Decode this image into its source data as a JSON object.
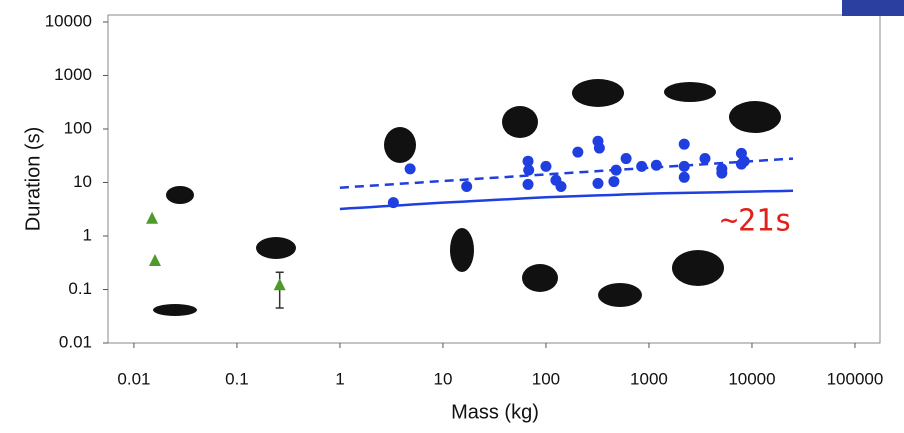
{
  "chart_data": {
    "type": "scatter",
    "x_label": "Mass (kg)",
    "y_label": "Duration (s)",
    "log_x": true,
    "log_y": true,
    "xlim": [
      0.0056,
      175000
    ],
    "ylim": [
      0.01,
      13500
    ],
    "xticks": [
      0.01,
      0.1,
      1,
      10,
      100,
      1000,
      10000,
      100000
    ],
    "yticks": [
      0.01,
      0.1,
      1,
      10,
      100,
      1000,
      10000
    ],
    "series": [
      {
        "marker": "circle",
        "color": "#1f3fe0",
        "x": [
          3.3,
          4.8,
          17,
          67,
          68,
          67,
          100,
          125,
          140,
          204,
          320,
          330,
          320,
          457,
          480,
          600,
          850,
          1180,
          2200,
          2200,
          2200,
          3500,
          5100,
          5100,
          7900,
          8400,
          7900
        ],
        "values": [
          4.2,
          18,
          8.4,
          25,
          17,
          9.2,
          20,
          11,
          8.4,
          37,
          59,
          44,
          9.6,
          10.4,
          17,
          28,
          20,
          21,
          52,
          20,
          12.5,
          28,
          18,
          15,
          35,
          25,
          22
        ]
      },
      {
        "marker": "triangle",
        "color": "#4e9a2a",
        "x": [
          0.015,
          0.016,
          0.26
        ],
        "values": [
          2.1,
          0.34,
          0.12
        ],
        "error_low": [
          null,
          null,
          0.045
        ],
        "error_high": [
          null,
          null,
          0.21
        ]
      },
      {
        "marker": "line",
        "dashed": true,
        "color": "#1f3fe0",
        "x": [
          1,
          25000
        ],
        "values": [
          8,
          28
        ]
      },
      {
        "marker": "line",
        "dashed": false,
        "color": "#1f3fe0",
        "x": [
          1,
          10,
          100,
          1000,
          25000
        ],
        "values": [
          3.2,
          4.2,
          5.3,
          6.2,
          7
        ]
      }
    ],
    "annotation": "~21s"
  }
}
